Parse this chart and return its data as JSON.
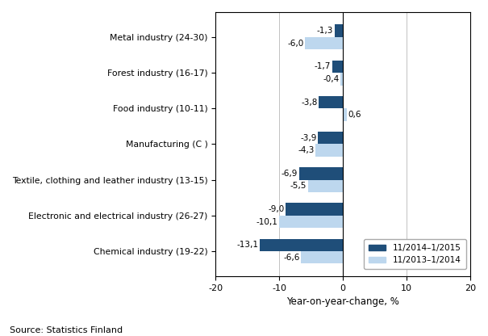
{
  "categories": [
    "Chemical industry (19-22)",
    "Electronic and electrical industry (26-27)",
    "Textile, clothing and leather industry (13-15)",
    "Manufacturing (C )",
    "Food industry (10-11)",
    "Forest industry (16-17)",
    "Metal industry (24-30)"
  ],
  "series1_label": "11/2014–1/2015",
  "series2_label": "11/2013–1/2014",
  "series1_values": [
    -13.1,
    -9.0,
    -6.9,
    -3.9,
    -3.8,
    -1.7,
    -1.3
  ],
  "series2_values": [
    -6.6,
    -10.1,
    -5.5,
    -4.3,
    0.6,
    -0.4,
    -6.0
  ],
  "series1_color": "#1F4E79",
  "series2_color": "#BDD7EE",
  "xlabel": "Year-on-year-change, %",
  "xlim": [
    -20,
    20
  ],
  "xticks": [
    -20,
    -10,
    0,
    10,
    20
  ],
  "source_text": "Source: Statistics Finland",
  "bar_height": 0.35
}
